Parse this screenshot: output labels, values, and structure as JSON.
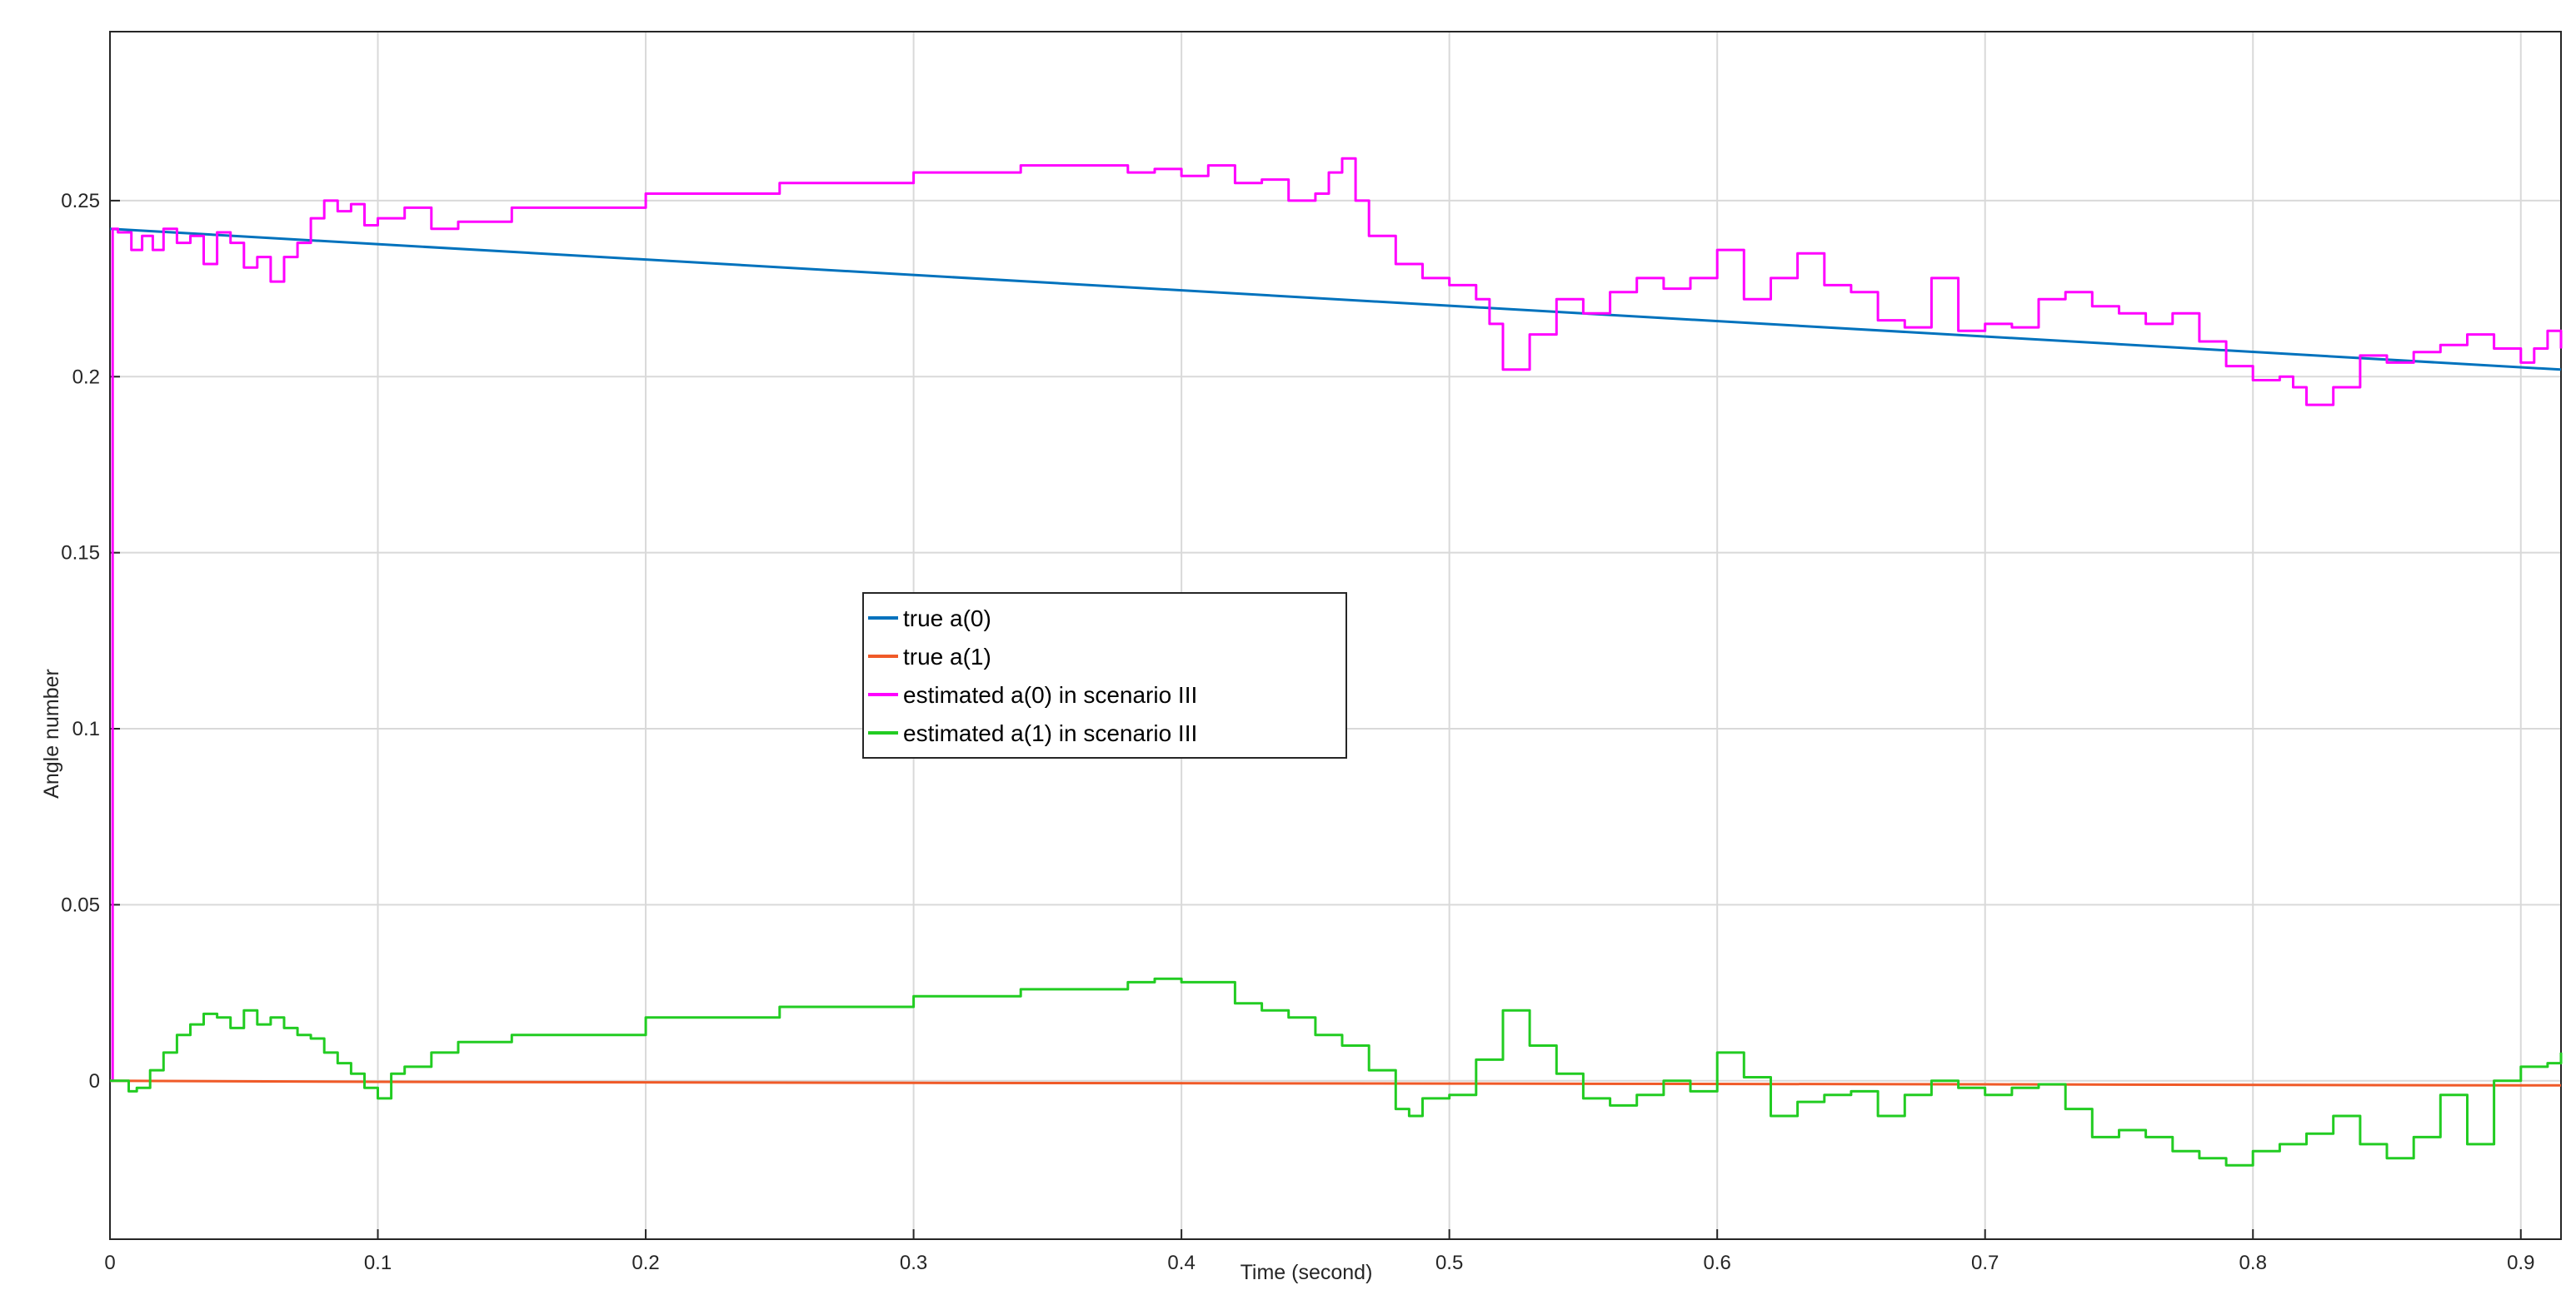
{
  "chart_data": {
    "type": "line",
    "title": "",
    "xlabel": "Time (second)",
    "ylabel": "Angle number",
    "xlim": [
      0,
      0.915
    ],
    "ylim": [
      -0.045,
      0.298
    ],
    "xticks": [
      0,
      0.1,
      0.2,
      0.3,
      0.4,
      0.5,
      0.6,
      0.7,
      0.8,
      0.9
    ],
    "xtick_labels": [
      "0",
      "0.1",
      "0.2",
      "0.3",
      "0.4",
      "0.5",
      "0.6",
      "0.7",
      "0.8",
      "0.9"
    ],
    "yticks": [
      0,
      0.05,
      0.1,
      0.15,
      0.2,
      0.25
    ],
    "ytick_labels": [
      "0",
      "0.05",
      "0.1",
      "0.15",
      "0.2",
      "0.25"
    ],
    "grid": true,
    "legend_position": "center",
    "series": [
      {
        "name": "true a(0)",
        "color": "#0072BD",
        "x": [
          0,
          0.915
        ],
        "y": [
          0.242,
          0.202
        ]
      },
      {
        "name": "true a(1)",
        "color": "#F05A28",
        "x": [
          0,
          0.1,
          0.3,
          0.5,
          0.7,
          0.9,
          0.915
        ],
        "y": [
          0.0,
          -0.0003,
          -0.0006,
          -0.0008,
          -0.001,
          -0.0013,
          -0.0013
        ]
      },
      {
        "name": "estimated a(0) in scenario III",
        "color": "#FF00FF",
        "x": [
          0,
          0.001,
          0.003,
          0.008,
          0.012,
          0.016,
          0.02,
          0.025,
          0.03,
          0.035,
          0.04,
          0.045,
          0.05,
          0.055,
          0.06,
          0.065,
          0.07,
          0.075,
          0.08,
          0.085,
          0.09,
          0.095,
          0.1,
          0.11,
          0.12,
          0.13,
          0.15,
          0.2,
          0.25,
          0.3,
          0.34,
          0.38,
          0.39,
          0.4,
          0.41,
          0.42,
          0.43,
          0.44,
          0.45,
          0.455,
          0.46,
          0.465,
          0.47,
          0.48,
          0.49,
          0.5,
          0.51,
          0.515,
          0.52,
          0.53,
          0.54,
          0.55,
          0.56,
          0.57,
          0.58,
          0.59,
          0.6,
          0.61,
          0.62,
          0.63,
          0.64,
          0.65,
          0.66,
          0.67,
          0.68,
          0.69,
          0.7,
          0.71,
          0.72,
          0.73,
          0.74,
          0.75,
          0.76,
          0.77,
          0.78,
          0.79,
          0.8,
          0.81,
          0.815,
          0.82,
          0.83,
          0.84,
          0.85,
          0.86,
          0.87,
          0.88,
          0.89,
          0.9,
          0.905,
          0.91,
          0.915
        ],
        "y": [
          0.0,
          0.242,
          0.241,
          0.236,
          0.24,
          0.236,
          0.242,
          0.238,
          0.24,
          0.232,
          0.241,
          0.238,
          0.231,
          0.234,
          0.227,
          0.234,
          0.238,
          0.245,
          0.25,
          0.247,
          0.249,
          0.243,
          0.245,
          0.248,
          0.242,
          0.244,
          0.248,
          0.252,
          0.255,
          0.258,
          0.26,
          0.258,
          0.259,
          0.257,
          0.26,
          0.255,
          0.256,
          0.25,
          0.252,
          0.258,
          0.262,
          0.25,
          0.24,
          0.232,
          0.228,
          0.226,
          0.222,
          0.215,
          0.202,
          0.212,
          0.222,
          0.218,
          0.224,
          0.228,
          0.225,
          0.228,
          0.236,
          0.222,
          0.228,
          0.235,
          0.226,
          0.224,
          0.216,
          0.214,
          0.228,
          0.213,
          0.215,
          0.214,
          0.222,
          0.224,
          0.22,
          0.218,
          0.215,
          0.218,
          0.21,
          0.203,
          0.199,
          0.2,
          0.197,
          0.192,
          0.197,
          0.206,
          0.204,
          0.207,
          0.209,
          0.212,
          0.208,
          0.204,
          0.208,
          0.213,
          0.208
        ]
      },
      {
        "name": "estimated a(1) in scenario III",
        "color": "#22CC22",
        "x": [
          0,
          0.003,
          0.007,
          0.01,
          0.015,
          0.02,
          0.025,
          0.03,
          0.035,
          0.04,
          0.045,
          0.05,
          0.055,
          0.06,
          0.065,
          0.07,
          0.075,
          0.08,
          0.085,
          0.09,
          0.095,
          0.1,
          0.105,
          0.11,
          0.12,
          0.13,
          0.15,
          0.2,
          0.25,
          0.3,
          0.34,
          0.38,
          0.39,
          0.4,
          0.41,
          0.42,
          0.43,
          0.44,
          0.45,
          0.46,
          0.47,
          0.48,
          0.485,
          0.49,
          0.5,
          0.51,
          0.52,
          0.53,
          0.54,
          0.55,
          0.56,
          0.57,
          0.58,
          0.59,
          0.6,
          0.61,
          0.62,
          0.63,
          0.64,
          0.65,
          0.66,
          0.67,
          0.68,
          0.69,
          0.7,
          0.71,
          0.72,
          0.73,
          0.74,
          0.75,
          0.76,
          0.77,
          0.78,
          0.79,
          0.8,
          0.81,
          0.82,
          0.83,
          0.84,
          0.85,
          0.86,
          0.87,
          0.88,
          0.89,
          0.9,
          0.91,
          0.915
        ],
        "y": [
          0.0,
          0.0,
          -0.003,
          -0.002,
          0.003,
          0.008,
          0.013,
          0.016,
          0.019,
          0.018,
          0.015,
          0.02,
          0.016,
          0.018,
          0.015,
          0.013,
          0.012,
          0.008,
          0.005,
          0.002,
          -0.002,
          -0.005,
          0.002,
          0.004,
          0.008,
          0.011,
          0.013,
          0.018,
          0.021,
          0.024,
          0.026,
          0.028,
          0.029,
          0.028,
          0.028,
          0.022,
          0.02,
          0.018,
          0.013,
          0.01,
          0.003,
          -0.008,
          -0.01,
          -0.005,
          -0.004,
          0.006,
          0.02,
          0.01,
          0.002,
          -0.005,
          -0.007,
          -0.004,
          0.0,
          -0.003,
          0.008,
          0.001,
          -0.01,
          -0.006,
          -0.004,
          -0.003,
          -0.01,
          -0.004,
          0.0,
          -0.002,
          -0.004,
          -0.002,
          -0.001,
          -0.008,
          -0.016,
          -0.014,
          -0.016,
          -0.02,
          -0.022,
          -0.024,
          -0.02,
          -0.018,
          -0.015,
          -0.01,
          -0.018,
          -0.022,
          -0.016,
          -0.004,
          -0.018,
          0.0,
          0.004,
          0.005,
          0.008
        ]
      }
    ]
  }
}
